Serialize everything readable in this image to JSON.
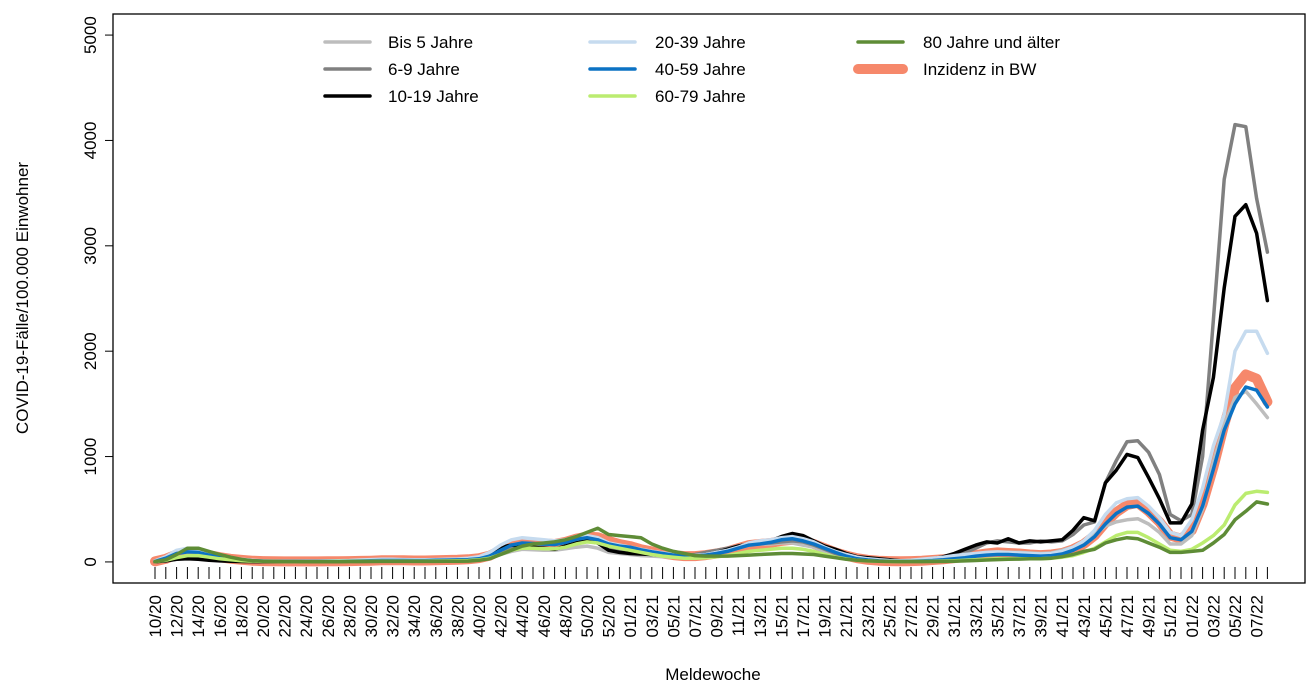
{
  "chart_data": {
    "type": "line",
    "xlabel": "Meldewoche",
    "ylabel": "COVID-19-Fälle/100.000 Einwohner",
    "ylim": [
      -200,
      5200
    ],
    "yticks": [
      0,
      1000,
      2000,
      3000,
      4000,
      5000
    ],
    "categories": [
      "10/20",
      null,
      "12/20",
      null,
      "14/20",
      null,
      "16/20",
      null,
      "18/20",
      null,
      "20/20",
      null,
      "22/20",
      null,
      "24/20",
      null,
      "26/20",
      null,
      "28/20",
      null,
      "30/20",
      null,
      "32/20",
      null,
      "34/20",
      null,
      "36/20",
      null,
      "38/20",
      null,
      "40/20",
      null,
      "42/20",
      null,
      "44/20",
      null,
      "46/20",
      null,
      "48/20",
      null,
      "50/20",
      null,
      "52/20",
      null,
      "01/21",
      null,
      "03/21",
      null,
      "05/21",
      null,
      "07/21",
      null,
      "09/21",
      null,
      "11/21",
      null,
      "13/21",
      null,
      "15/21",
      null,
      "17/21",
      null,
      "19/21",
      null,
      "21/21",
      null,
      "23/21",
      null,
      "25/21",
      null,
      "27/21",
      null,
      "29/21",
      null,
      "31/21",
      null,
      "33/21",
      null,
      "35/21",
      null,
      "37/21",
      null,
      "39/21",
      null,
      "41/21",
      null,
      "43/21",
      null,
      "45/21",
      null,
      "47/21",
      null,
      "49/21",
      null,
      "51/21",
      null,
      "01/22",
      null,
      "03/22",
      null,
      "05/22",
      null,
      "07/22",
      null
    ],
    "series": [
      {
        "name": "Bis 5 Jahre",
        "color": "#bdbdbd",
        "values": [
          2,
          10,
          25,
          40,
          40,
          30,
          20,
          12,
          8,
          5,
          3,
          3,
          2,
          2,
          2,
          3,
          4,
          5,
          6,
          8,
          10,
          12,
          12,
          12,
          10,
          10,
          12,
          14,
          15,
          18,
          25,
          40,
          70,
          100,
          120,
          115,
          110,
          110,
          125,
          140,
          150,
          130,
          90,
          80,
          70,
          60,
          55,
          50,
          45,
          45,
          50,
          60,
          80,
          100,
          130,
          160,
          170,
          170,
          180,
          180,
          160,
          140,
          100,
          70,
          45,
          25,
          15,
          10,
          7,
          6,
          8,
          12,
          18,
          25,
          35,
          50,
          65,
          80,
          90,
          90,
          90,
          85,
          80,
          85,
          110,
          140,
          200,
          260,
          340,
          380,
          400,
          410,
          360,
          280,
          170,
          170,
          250,
          500,
          950,
          1300,
          1560,
          1620,
          1500,
          1370
        ]
      },
      {
        "name": "6-9 Jahre",
        "color": "#808080",
        "values": [
          2,
          15,
          35,
          50,
          50,
          35,
          25,
          15,
          10,
          6,
          4,
          3,
          3,
          3,
          3,
          4,
          5,
          6,
          8,
          10,
          12,
          15,
          15,
          15,
          14,
          14,
          16,
          18,
          22,
          28,
          40,
          60,
          100,
          140,
          170,
          170,
          165,
          165,
          185,
          210,
          220,
          200,
          140,
          110,
          90,
          80,
          70,
          65,
          60,
          60,
          70,
          90,
          110,
          130,
          150,
          170,
          180,
          180,
          190,
          200,
          190,
          160,
          120,
          80,
          50,
          30,
          18,
          12,
          8,
          6,
          10,
          16,
          25,
          40,
          60,
          90,
          130,
          180,
          200,
          190,
          180,
          180,
          200,
          190,
          200,
          260,
          350,
          380,
          750,
          960,
          1140,
          1150,
          1040,
          830,
          450,
          390,
          450,
          1000,
          2300,
          3630,
          4150,
          4130,
          3450,
          2940
        ]
      },
      {
        "name": "10-19 Jahre",
        "color": "#000000",
        "values": [
          1,
          10,
          25,
          30,
          25,
          15,
          10,
          6,
          4,
          3,
          3,
          2,
          2,
          2,
          2,
          3,
          4,
          5,
          7,
          10,
          12,
          14,
          14,
          14,
          14,
          15,
          18,
          20,
          25,
          30,
          45,
          80,
          140,
          160,
          150,
          140,
          130,
          120,
          150,
          180,
          200,
          180,
          110,
          90,
          80,
          75,
          70,
          60,
          55,
          50,
          55,
          70,
          90,
          120,
          150,
          170,
          180,
          200,
          240,
          270,
          250,
          200,
          150,
          120,
          80,
          50,
          40,
          30,
          20,
          12,
          12,
          20,
          30,
          50,
          80,
          120,
          160,
          190,
          180,
          220,
          180,
          200,
          190,
          200,
          210,
          300,
          420,
          390,
          750,
          870,
          1020,
          990,
          800,
          600,
          370,
          370,
          550,
          1250,
          1750,
          2600,
          3280,
          3390,
          3120,
          2480
        ]
      },
      {
        "name": "20-39 Jahre",
        "color": "#c6dbef",
        "values": [
          10,
          50,
          110,
          130,
          110,
          80,
          55,
          35,
          25,
          15,
          10,
          8,
          8,
          8,
          8,
          8,
          10,
          12,
          14,
          18,
          22,
          25,
          25,
          22,
          20,
          20,
          22,
          25,
          28,
          35,
          50,
          90,
          160,
          210,
          230,
          220,
          210,
          200,
          210,
          240,
          250,
          230,
          180,
          160,
          140,
          120,
          100,
          85,
          70,
          60,
          60,
          70,
          90,
          110,
          140,
          180,
          200,
          210,
          230,
          240,
          220,
          190,
          140,
          100,
          70,
          45,
          30,
          20,
          14,
          12,
          16,
          25,
          35,
          45,
          60,
          70,
          80,
          90,
          95,
          90,
          85,
          80,
          75,
          80,
          100,
          140,
          200,
          300,
          450,
          560,
          600,
          610,
          530,
          420,
          280,
          250,
          400,
          700,
          1100,
          1400,
          2000,
          2190,
          2190,
          1980
        ]
      },
      {
        "name": "40-59 Jahre",
        "color": "#0b72c4",
        "values": [
          5,
          35,
          80,
          95,
          90,
          65,
          45,
          30,
          20,
          12,
          8,
          6,
          5,
          5,
          5,
          5,
          6,
          7,
          8,
          10,
          12,
          14,
          14,
          14,
          13,
          13,
          15,
          17,
          19,
          22,
          30,
          55,
          110,
          160,
          180,
          175,
          170,
          165,
          185,
          215,
          230,
          210,
          170,
          150,
          140,
          115,
          95,
          80,
          65,
          55,
          55,
          65,
          80,
          100,
          130,
          160,
          170,
          185,
          210,
          220,
          200,
          170,
          130,
          90,
          55,
          30,
          18,
          10,
          7,
          5,
          7,
          10,
          14,
          20,
          30,
          40,
          55,
          65,
          70,
          70,
          65,
          60,
          55,
          60,
          75,
          110,
          160,
          240,
          360,
          460,
          520,
          530,
          460,
          360,
          230,
          210,
          290,
          530,
          880,
          1250,
          1500,
          1660,
          1630,
          1470
        ]
      },
      {
        "name": "60-79 Jahre",
        "color": "#bbec70",
        "values": [
          2,
          15,
          40,
          60,
          60,
          45,
          30,
          20,
          12,
          8,
          5,
          4,
          3,
          3,
          3,
          3,
          4,
          5,
          5,
          6,
          7,
          8,
          8,
          8,
          8,
          8,
          9,
          10,
          11,
          14,
          20,
          35,
          70,
          110,
          130,
          130,
          125,
          125,
          140,
          170,
          190,
          180,
          150,
          130,
          110,
          90,
          70,
          55,
          45,
          35,
          35,
          40,
          50,
          60,
          80,
          100,
          110,
          120,
          130,
          130,
          120,
          100,
          70,
          45,
          30,
          15,
          10,
          6,
          4,
          3,
          4,
          5,
          7,
          9,
          12,
          15,
          20,
          25,
          30,
          30,
          30,
          30,
          30,
          35,
          45,
          60,
          90,
          130,
          190,
          250,
          280,
          280,
          230,
          170,
          110,
          100,
          120,
          180,
          250,
          350,
          540,
          650,
          670,
          660
        ]
      },
      {
        "name": "80 Jahre und älter",
        "color": "#5e8c36",
        "values": [
          3,
          20,
          70,
          130,
          130,
          100,
          70,
          45,
          25,
          12,
          6,
          4,
          3,
          3,
          2,
          2,
          2,
          2,
          3,
          3,
          4,
          5,
          5,
          5,
          5,
          5,
          5,
          6,
          6,
          8,
          15,
          30,
          70,
          110,
          150,
          170,
          180,
          190,
          210,
          240,
          280,
          320,
          260,
          250,
          240,
          230,
          170,
          130,
          100,
          80,
          60,
          55,
          55,
          55,
          60,
          65,
          70,
          75,
          80,
          80,
          75,
          70,
          55,
          40,
          25,
          15,
          10,
          6,
          4,
          3,
          3,
          3,
          4,
          5,
          7,
          10,
          14,
          18,
          22,
          25,
          27,
          30,
          30,
          35,
          50,
          70,
          100,
          120,
          180,
          210,
          230,
          220,
          180,
          140,
          90,
          90,
          100,
          110,
          180,
          260,
          400,
          480,
          570,
          550
        ]
      },
      {
        "name": "Inzidenz in BW",
        "color": "#f6886b",
        "values": [
          5,
          30,
          70,
          95,
          90,
          65,
          45,
          30,
          20,
          12,
          8,
          6,
          5,
          5,
          5,
          5,
          6,
          7,
          8,
          10,
          12,
          15,
          15,
          15,
          14,
          14,
          16,
          18,
          20,
          25,
          35,
          60,
          110,
          160,
          190,
          180,
          175,
          170,
          190,
          220,
          240,
          235,
          200,
          170,
          150,
          120,
          100,
          80,
          65,
          55,
          55,
          65,
          80,
          100,
          130,
          160,
          170,
          180,
          200,
          210,
          200,
          170,
          130,
          90,
          60,
          35,
          20,
          12,
          8,
          6,
          8,
          12,
          18,
          25,
          35,
          50,
          65,
          80,
          90,
          85,
          80,
          70,
          65,
          70,
          85,
          120,
          170,
          250,
          370,
          470,
          540,
          560,
          480,
          380,
          250,
          220,
          300,
          550,
          900,
          1300,
          1650,
          1780,
          1740,
          1520
        ]
      }
    ]
  }
}
